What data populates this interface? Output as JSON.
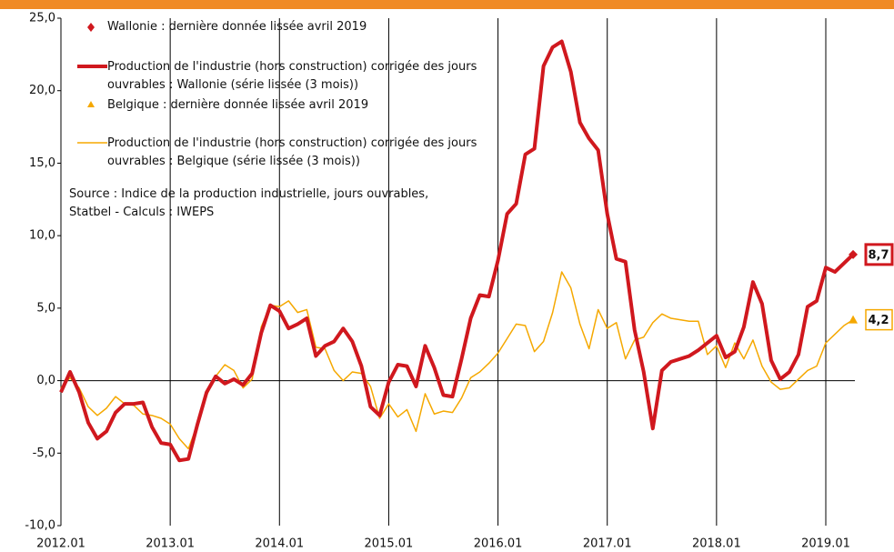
{
  "chart_data": {
    "type": "line",
    "categories": [
      "2012.01",
      null,
      null,
      null,
      null,
      null,
      null,
      null,
      null,
      null,
      null,
      null,
      "2013.01",
      null,
      null,
      null,
      null,
      null,
      null,
      null,
      null,
      null,
      null,
      null,
      "2014.01",
      null,
      null,
      null,
      null,
      null,
      null,
      null,
      null,
      null,
      null,
      null,
      "2015.01",
      null,
      null,
      null,
      null,
      null,
      null,
      null,
      null,
      null,
      null,
      null,
      "2016.01",
      null,
      null,
      null,
      null,
      null,
      null,
      null,
      null,
      null,
      null,
      null,
      "2017.01",
      null,
      null,
      null,
      null,
      null,
      null,
      null,
      null,
      null,
      null,
      null,
      "2018.01",
      null,
      null,
      null,
      null,
      null,
      null,
      null,
      null,
      null,
      null,
      null,
      "2019.01",
      null,
      null,
      null
    ],
    "series": [
      {
        "name": "Production de l'industrie (hors construction) corrigée des jours ouvrables : Wallonie (série lissée (3 mois))",
        "marker_name": "Wallonie : dernière donnée lissée avril 2019",
        "color": "#d0181e",
        "values": [
          -0.8,
          0.6,
          -0.8,
          -2.9,
          -4.0,
          -3.5,
          -2.2,
          -1.6,
          -1.6,
          -1.5,
          -3.2,
          -4.3,
          -4.4,
          -5.5,
          -5.4,
          -3.0,
          -0.8,
          0.3,
          -0.2,
          0.1,
          -0.3,
          0.5,
          3.3,
          5.2,
          4.8,
          3.6,
          3.9,
          4.3,
          1.7,
          2.4,
          2.7,
          3.6,
          2.7,
          1.0,
          -1.8,
          -2.4,
          -0.1,
          1.1,
          1.0,
          -0.4,
          2.4,
          0.9,
          -1.0,
          -1.1,
          1.5,
          4.3,
          5.9,
          5.8,
          8.3,
          11.5,
          12.2,
          15.6,
          16.0,
          21.7,
          23.0,
          23.4,
          21.3,
          17.8,
          16.7,
          15.9,
          11.5,
          8.4,
          8.2,
          3.5,
          0.6,
          -3.3,
          0.7,
          1.3,
          1.5,
          1.7,
          2.1,
          2.6,
          3.1,
          1.6,
          2.0,
          3.7,
          6.8,
          5.3,
          1.4,
          0.1,
          0.6,
          1.8,
          5.1,
          5.5,
          7.8,
          7.5,
          8.1,
          8.7
        ],
        "last_label": "8,7"
      },
      {
        "name": "Production de l'industrie (hors construction) corrigée des jours ouvrables : Belgique (série lissée (3 mois))",
        "marker_name": "Belgique : dernière donnée lissée avril 2019",
        "color": "#f5a800",
        "values": [
          -0.5,
          0.2,
          -0.5,
          -1.8,
          -2.4,
          -1.9,
          -1.1,
          -1.6,
          -1.7,
          -2.3,
          -2.4,
          -2.6,
          -3.0,
          -4.0,
          -4.7,
          -3.0,
          -1.0,
          0.3,
          1.1,
          0.7,
          -0.5,
          0.1,
          3.7,
          5.2,
          5.1,
          5.5,
          4.7,
          4.9,
          2.3,
          2.2,
          0.7,
          0.0,
          0.6,
          0.5,
          -0.4,
          -2.6,
          -1.6,
          -2.5,
          -2.0,
          -3.5,
          -0.9,
          -2.3,
          -2.1,
          -2.2,
          -1.2,
          0.2,
          0.6,
          1.2,
          1.9,
          2.9,
          3.9,
          3.8,
          2.0,
          2.7,
          4.7,
          7.5,
          6.4,
          3.9,
          2.2,
          4.9,
          3.6,
          4.0,
          1.5,
          2.8,
          3.0,
          4.0,
          4.6,
          4.3,
          4.2,
          4.1,
          4.1,
          1.8,
          2.4,
          0.9,
          2.6,
          1.5,
          2.8,
          1.0,
          -0.1,
          -0.6,
          -0.5,
          0.1,
          0.7,
          1.0,
          2.6,
          3.2,
          3.8,
          4.2
        ],
        "last_label": "4,2"
      }
    ],
    "annotation": "Source : Indice de la production industrielle, jours ouvrables, Statbel - Calculs : IWEPS",
    "ylim": [
      -10,
      25
    ],
    "yticks": [
      {
        "value": -10,
        "label": "-10,0"
      },
      {
        "value": -5,
        "label": "-5,0"
      },
      {
        "value": 0,
        "label": "0,0"
      },
      {
        "value": 5,
        "label": "5,0"
      },
      {
        "value": 10,
        "label": "10,0"
      },
      {
        "value": 15,
        "label": "15,0"
      },
      {
        "value": 20,
        "label": "20,0"
      },
      {
        "value": 25,
        "label": "25,0"
      }
    ]
  }
}
